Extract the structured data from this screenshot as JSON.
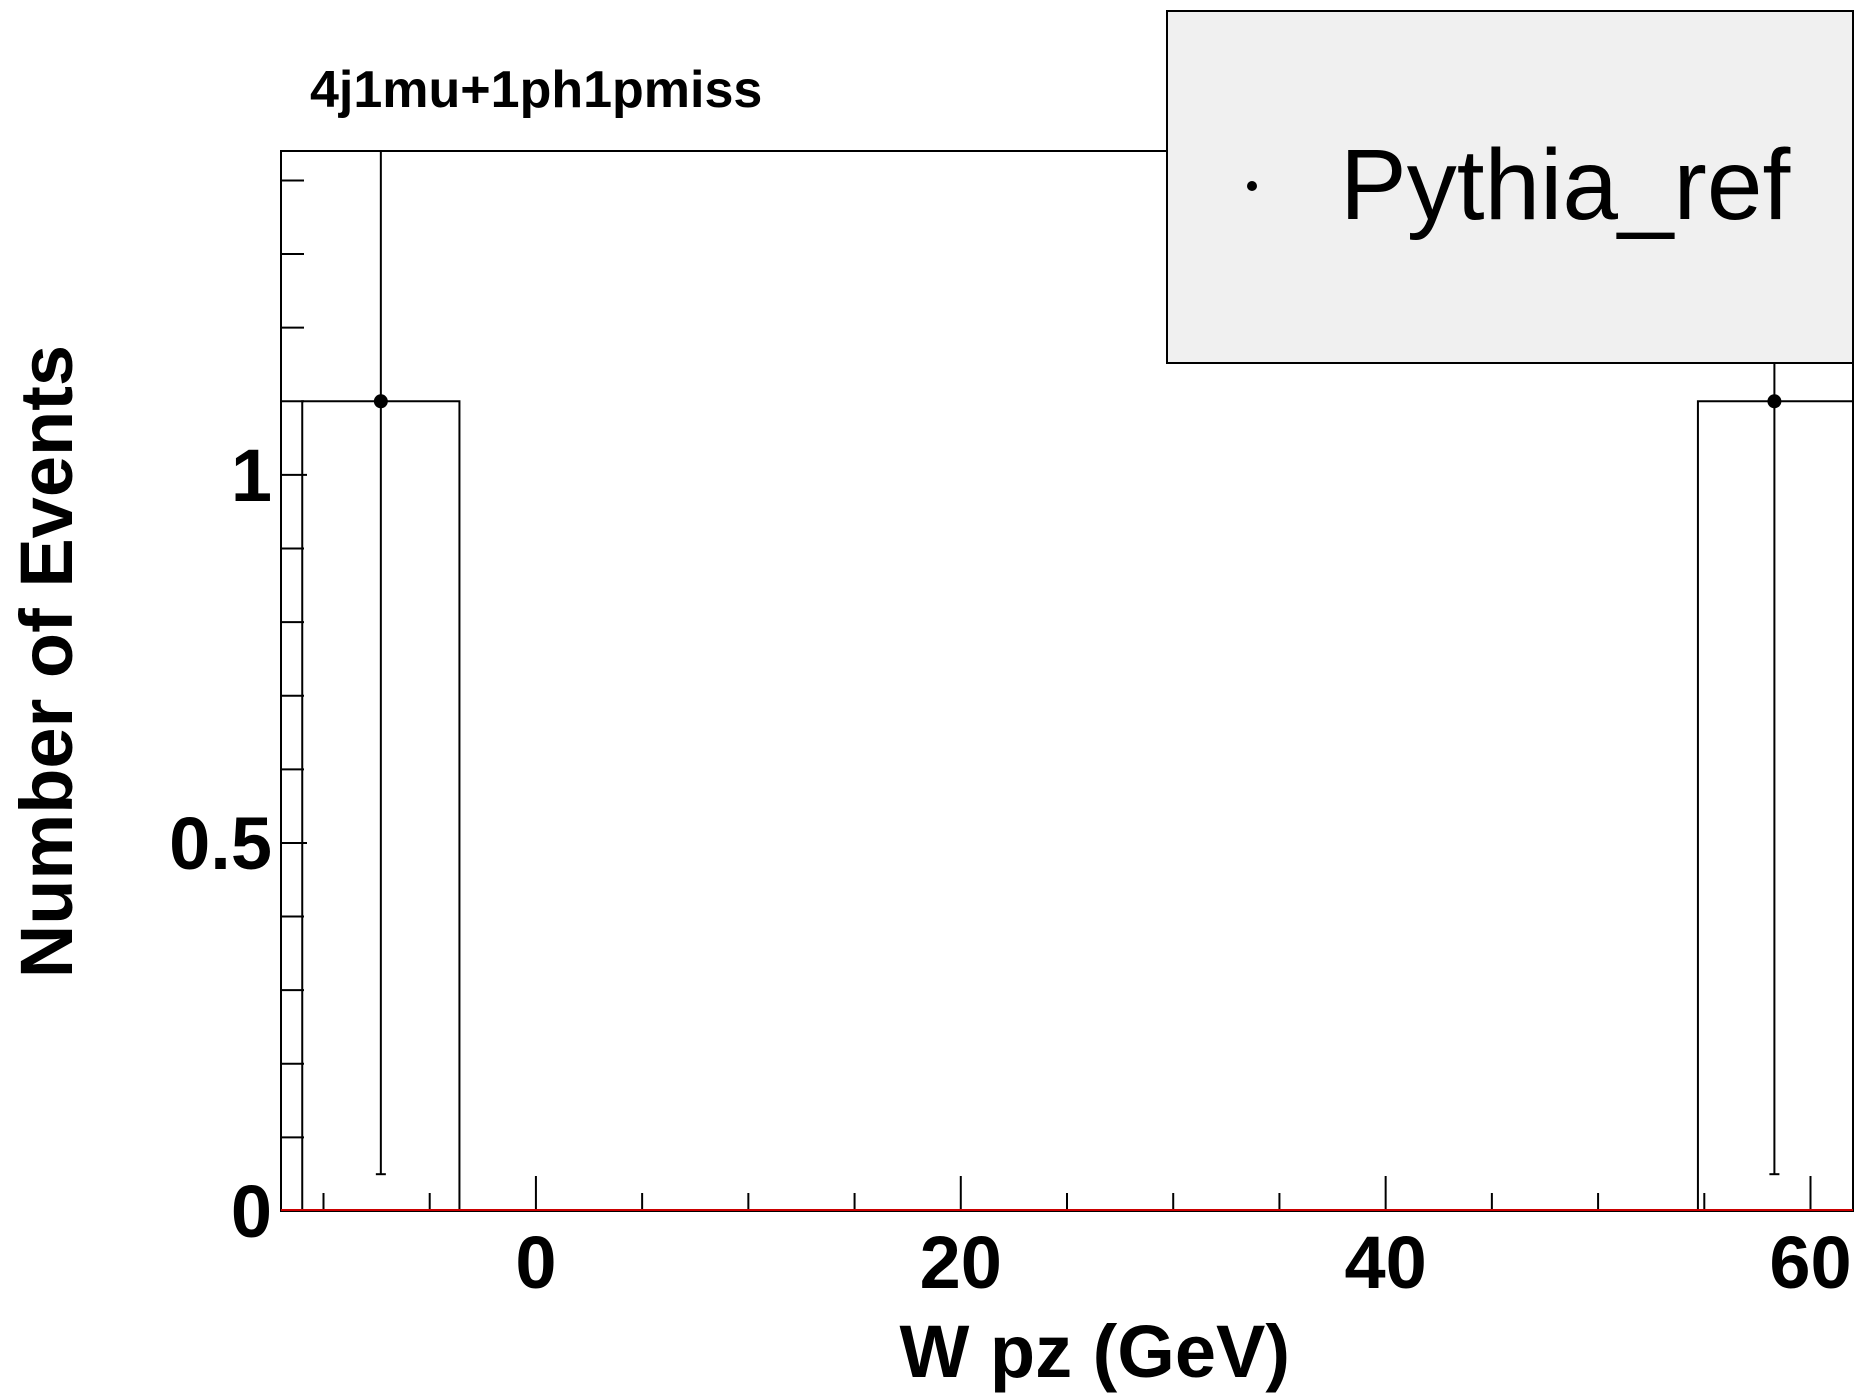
{
  "chart_data": {
    "type": "histogram",
    "title": "4j1mu+1ph1pmiss",
    "xlabel": "W pz (GeV)",
    "ylabel": "Number of Events",
    "xlim": [
      -12,
      62
    ],
    "ylim": [
      0,
      1.44
    ],
    "x_ticks": [
      0,
      20,
      40,
      60
    ],
    "x_tick_labels": [
      "0",
      "20",
      "40",
      "60"
    ],
    "y_ticks": [
      0,
      0.5,
      1
    ],
    "y_tick_labels": [
      "0",
      "0.5",
      "1"
    ],
    "series": [
      {
        "name": "Pythia_ref",
        "bins": [
          {
            "low": -11,
            "high": -3.6,
            "value": 1.1,
            "err_low": 0.05,
            "err_high": 1.44
          },
          {
            "low": 54.7,
            "high": 62,
            "value": 1.1,
            "err_low": 0.05,
            "err_high": 1.44
          }
        ],
        "points": [
          {
            "x": -7.3,
            "y": 1.1
          },
          {
            "x": 58.3,
            "y": 1.1
          }
        ]
      }
    ],
    "legend": {
      "position": "top-right",
      "entries": [
        "Pythia_ref"
      ]
    },
    "colors": {
      "frame": "#000000",
      "legend_bg": "#f0f0f0",
      "baseline": "#cc0000"
    },
    "grid": false
  }
}
